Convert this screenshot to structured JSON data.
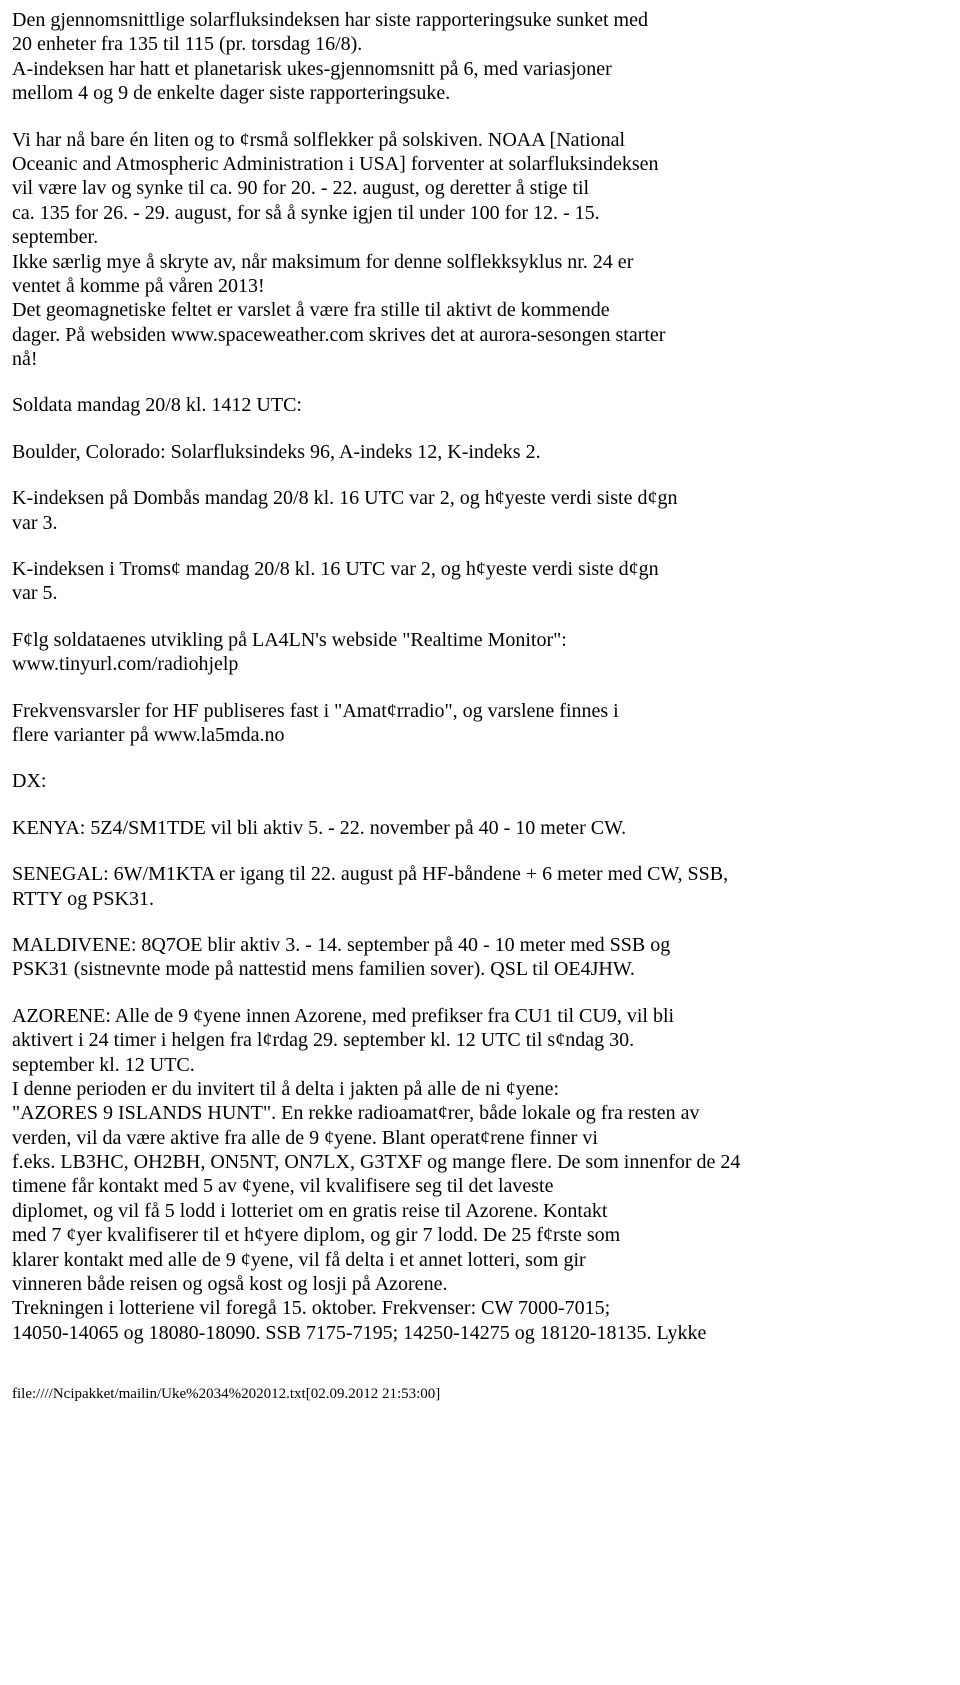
{
  "document": {
    "font_family": "Times New Roman",
    "font_size_pt": 15,
    "text_color": "#000000",
    "background_color": "#ffffff",
    "paragraphs": [
      "Den gjennomsnittlige solarfluksindeksen har siste rapporteringsuke sunket med\n20 enheter fra 135 til 115 (pr. torsdag 16/8).\nA-indeksen har hatt et planetarisk ukes-gjennomsnitt på 6, med variasjoner\nmellom 4 og 9 de enkelte dager siste rapporteringsuke.",
      "Vi har nå bare én liten og to ¢rsmå solflekker på solskiven. NOAA [National\nOceanic and Atmospheric Administration i USA] forventer at solarfluksindeksen\nvil være lav og synke til ca. 90 for 20. - 22. august, og deretter å stige til\nca. 135 for 26. - 29. august, for så å synke igjen til under 100 for 12. - 15.\nseptember.\nIkke særlig mye å skryte av, når maksimum for denne solflekksyklus nr. 24 er\nventet å komme på våren 2013!\nDet geomagnetiske feltet er varslet å være fra stille til aktivt de kommende\ndager. På websiden www.spaceweather.com skrives det at aurora-sesongen starter\nnå!",
      "Soldata mandag 20/8 kl. 1412 UTC:",
      "Boulder, Colorado: Solarfluksindeks 96, A-indeks 12, K-indeks 2.",
      "K-indeksen på Dombås mandag 20/8 kl. 16 UTC var 2, og h¢yeste verdi siste d¢gn\nvar 3.",
      "K-indeksen i Troms¢ mandag 20/8 kl. 16 UTC var 2, og h¢yeste verdi siste d¢gn\nvar 5.",
      "F¢lg soldataenes utvikling på LA4LN's webside \"Realtime Monitor\":\nwww.tinyurl.com/radiohjelp",
      "Frekvensvarsler for HF publiseres fast i \"Amat¢rradio\", og varslene finnes i\nflere varianter på www.la5mda.no",
      "DX:",
      "KENYA: 5Z4/SM1TDE vil bli aktiv 5. - 22. november på 40 - 10 meter CW.",
      "SENEGAL: 6W/M1KTA er igang til 22. august på HF-båndene + 6 meter med CW, SSB,\nRTTY og PSK31.",
      "MALDIVENE: 8Q7OE blir aktiv 3. - 14. september på 40 - 10 meter med SSB og\nPSK31 (sistnevnte mode på nattestid mens familien sover). QSL til OE4JHW.",
      "AZORENE: Alle de 9 ¢yene innen Azorene, med prefikser fra CU1 til CU9, vil bli\naktivert i 24 timer i helgen fra l¢rdag 29. september kl. 12 UTC til s¢ndag 30.\nseptember kl. 12 UTC.\nI denne perioden er du invitert til å delta i jakten på alle de ni ¢yene:\n\"AZORES 9 ISLANDS HUNT\". En rekke radioamat¢rer, både lokale og fra resten av\nverden, vil da være aktive fra alle de 9 ¢yene. Blant operat¢rene finner vi\nf.eks. LB3HC, OH2BH, ON5NT, ON7LX, G3TXF og mange flere. De som innenfor de 24\ntimene får kontakt med 5 av ¢yene, vil kvalifisere seg til det laveste\ndiplomet, og vil få 5 lodd i lotteriet om en gratis reise til Azorene. Kontakt\nmed 7 ¢yer kvalifiserer til et h¢yere diplom, og gir 7 lodd. De 25 f¢rste som\nklarer kontakt med alle de 9 ¢yene, vil få delta i et annet lotteri, som gir\nvinneren både reisen og også kost og losji på Azorene.\nTrekningen i lotteriene vil foregå 15. oktober. Frekvenser: CW 7000-7015;\n14050-14065 og 18080-18090. SSB 7175-7195; 14250-14275 og 18120-18135. Lykke"
    ],
    "footer": "file:////Ncipakket/mailin/Uke%2034%202012.txt[02.09.2012 21:53:00]"
  }
}
